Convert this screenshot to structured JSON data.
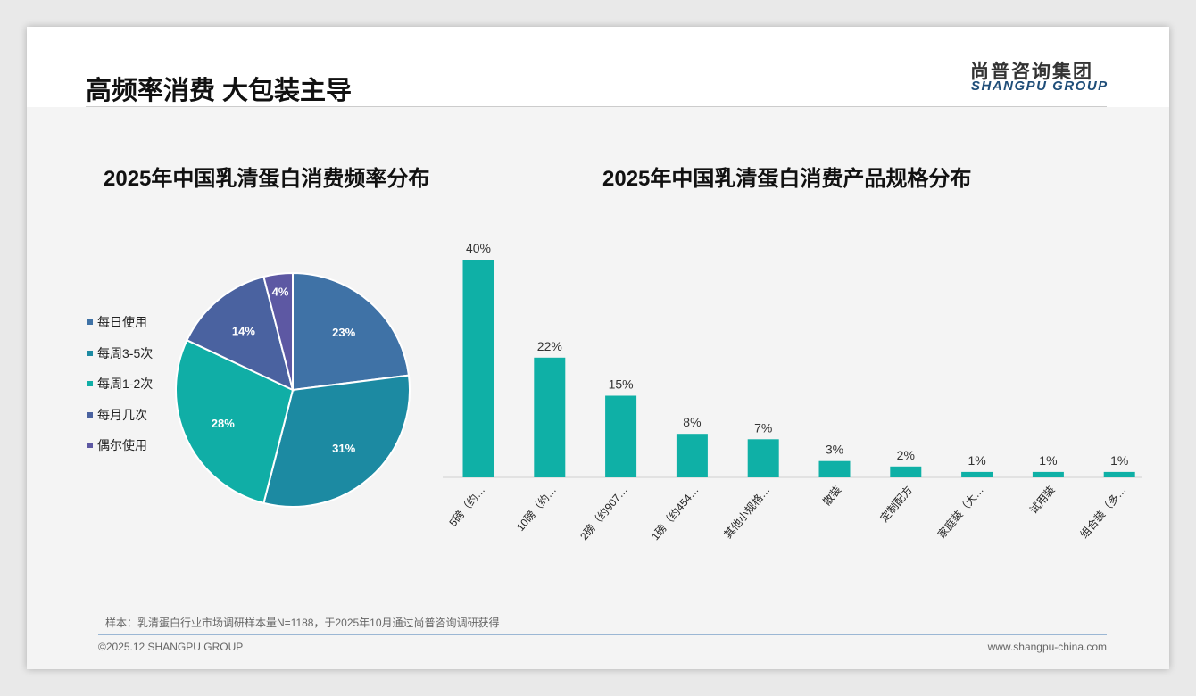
{
  "header": {
    "title": "高频率消费 大包装主导",
    "logo_cn": "尚普咨询集团",
    "logo_en": "SHANGPU GROUP"
  },
  "footer": {
    "note": "样本：乳清蛋白行业市场调研样本量N=1188，于2025年10月通过尚普咨询调研获得",
    "copyright": "©2025.12 SHANGPU GROUP",
    "url": "www.shangpu-china.com"
  },
  "chart_data": [
    {
      "type": "pie",
      "title": "2025年中国乳清蛋白消费频率分布",
      "categories": [
        "每日使用",
        "每周3-5次",
        "每周1-2次",
        "每月几次",
        "偶尔使用"
      ],
      "values": [
        23,
        31,
        28,
        14,
        4
      ],
      "labels": [
        "23%",
        "31%",
        "28%",
        "14%",
        "4%"
      ],
      "colors": [
        "#3f72a6",
        "#1c8aa2",
        "#10aea6",
        "#4a62a0",
        "#5d58a3"
      ],
      "legend": "left"
    },
    {
      "type": "bar",
      "title": "2025年中国乳清蛋白消费产品规格分布",
      "categories": [
        "5磅（约…",
        "10磅（约…",
        "2磅（约907…",
        "1磅（约454…",
        "其他小规格…",
        "散装",
        "定制配方",
        "家庭装（大…",
        "试用装",
        "组合装（多…"
      ],
      "values": [
        40,
        22,
        15,
        8,
        7,
        3,
        2,
        1,
        1,
        1
      ],
      "labels": [
        "40%",
        "22%",
        "15%",
        "8%",
        "7%",
        "3%",
        "2%",
        "1%",
        "1%",
        "1%"
      ],
      "color": "#0fb0a6",
      "ylim": [
        0,
        40
      ]
    }
  ]
}
